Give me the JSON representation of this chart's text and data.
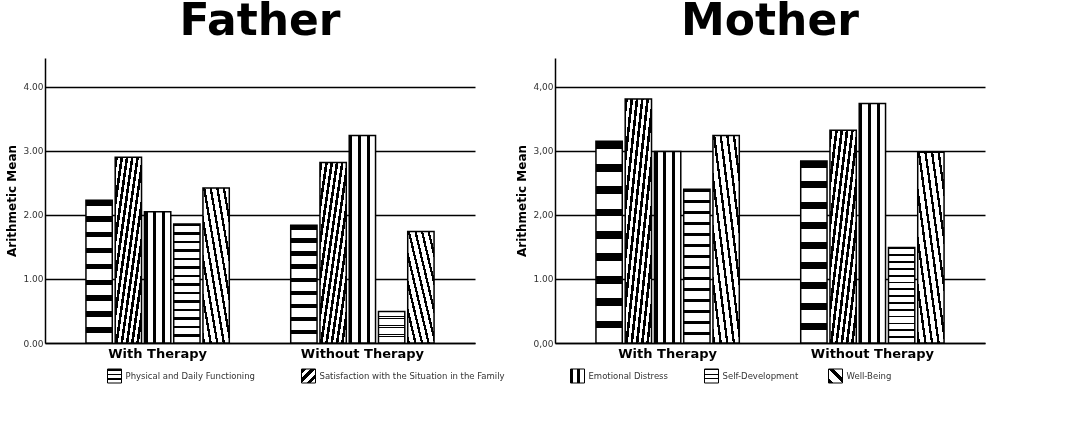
{
  "chart_data": [
    {
      "type": "bar",
      "title": "Father",
      "ylabel": "Arithmetic Mean",
      "categories": [
        "With Therapy",
        "Without Therapy"
      ],
      "series": [
        {
          "name": "Physical and Daily Functioning",
          "color": "#000000",
          "values": [
            2.23,
            1.84
          ]
        },
        {
          "name": "Satisfaction with the Situation in the Family",
          "color": "#000000",
          "values": [
            2.9,
            2.82
          ]
        },
        {
          "name": "Emotional Distress",
          "color": "#000000",
          "values": [
            2.05,
            3.24
          ]
        },
        {
          "name": "Self-Development",
          "color": "#000000",
          "values": [
            1.86,
            0.49
          ]
        },
        {
          "name": "Well-Being",
          "color": "#000000",
          "values": [
            2.42,
            1.74
          ]
        }
      ],
      "ylim": [
        0,
        4.45
      ],
      "yticks": [
        {
          "value": 0,
          "label": "0.00"
        },
        {
          "value": 1,
          "label": "1.00"
        },
        {
          "value": 2,
          "label": "2.00"
        },
        {
          "value": 3,
          "label": "3.00"
        },
        {
          "value": 4,
          "label": "4.00"
        }
      ],
      "grid": "y",
      "legend": "bottom"
    },
    {
      "type": "bar",
      "title": "Mother",
      "ylabel": "Arithmetic Mean",
      "categories": [
        "With Therapy",
        "Without Therapy"
      ],
      "series": [
        {
          "name": "Physical and Daily Functioning",
          "color": "#000000",
          "values": [
            3.15,
            2.84
          ]
        },
        {
          "name": "Satisfaction with the Situation in the Family",
          "color": "#000000",
          "values": [
            3.81,
            3.32
          ]
        },
        {
          "name": "Emotional Distress",
          "color": "#000000",
          "values": [
            2.99,
            3.74
          ]
        },
        {
          "name": "Self-Development",
          "color": "#000000",
          "values": [
            2.4,
            1.49
          ]
        },
        {
          "name": "Well-Being",
          "color": "#000000",
          "values": [
            3.24,
            2.98
          ]
        }
      ],
      "ylim": [
        0,
        4.45
      ],
      "yticks": [
        {
          "value": 0,
          "label": "0,00"
        },
        {
          "value": 1,
          "label": "1.00"
        },
        {
          "value": 2,
          "label": "2,00"
        },
        {
          "value": 3,
          "label": "3,00"
        },
        {
          "value": 4,
          "label": "4,00"
        }
      ],
      "grid": "y",
      "legend": "bottom"
    }
  ]
}
